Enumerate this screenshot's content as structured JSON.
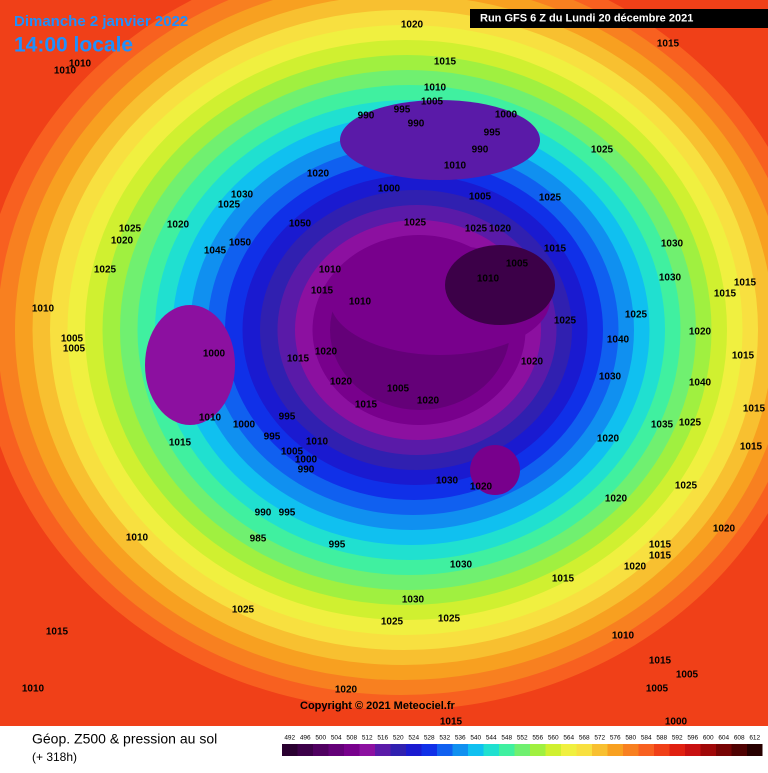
{
  "header": {
    "date": "Dimanche 2 janvier 2022",
    "time": "14:00 locale",
    "run": "Run GFS 6 Z du Lundi 20 décembre 2021"
  },
  "footer": {
    "title": "Géop. Z500 & pression au sol",
    "lead": "(+ 318h)",
    "copyright": "Copyright © 2021 Meteociel.fr"
  },
  "legend": {
    "values": [
      492,
      496,
      500,
      504,
      508,
      512,
      516,
      520,
      524,
      528,
      532,
      536,
      540,
      544,
      548,
      552,
      556,
      560,
      564,
      568,
      572,
      576,
      580,
      584,
      588,
      592,
      596,
      600,
      604,
      608,
      612
    ],
    "colors": [
      "#2a0030",
      "#3c0048",
      "#500060",
      "#640078",
      "#78008c",
      "#8c10a0",
      "#5a1aa8",
      "#3020b0",
      "#1a1ad0",
      "#1030e8",
      "#1060f0",
      "#1090f0",
      "#10c0f0",
      "#20e0d0",
      "#40f0a0",
      "#70f070",
      "#a0f040",
      "#d0f030",
      "#f0f040",
      "#f8e040",
      "#f8c030",
      "#f8a020",
      "#f88020",
      "#f86020",
      "#f04018",
      "#e02010",
      "#c81010",
      "#a00808",
      "#780404",
      "#500202",
      "#280000"
    ]
  },
  "pressure_labels": [
    "1020",
    "1015",
    "1015",
    "1010",
    "1010",
    "1010",
    "1005",
    "995",
    "990",
    "990",
    "1000",
    "995",
    "990",
    "1025",
    "1020",
    "1010",
    "1000",
    "1005",
    "1030",
    "1025",
    "1020",
    "1025",
    "1020",
    "1050",
    "1025",
    "1025",
    "1020",
    "1025",
    "1015",
    "1030",
    "1045",
    "1050",
    "1005",
    "1010",
    "1025",
    "1010",
    "1015",
    "1010",
    "1030",
    "1015",
    "1015",
    "1010",
    "1025",
    "1025",
    "1020",
    "1040",
    "1005",
    "1005",
    "1000",
    "1020",
    "1015",
    "1020",
    "1015",
    "1030",
    "1020",
    "1005",
    "1040",
    "1015",
    "1020",
    "1010",
    "1000",
    "995",
    "1015",
    "995",
    "1010",
    "1005",
    "1000",
    "990",
    "1035",
    "1025",
    "1015",
    "1020",
    "1015",
    "1030",
    "1020",
    "1025",
    "990",
    "995",
    "985",
    "1020",
    "1020",
    "1010",
    "995",
    "1015",
    "1015",
    "1030",
    "1020",
    "1015",
    "1030",
    "1025",
    "1025",
    "1025",
    "1015",
    "1010",
    "1015",
    "1005",
    "1005",
    "1010",
    "1020",
    "1015",
    "1000"
  ]
}
